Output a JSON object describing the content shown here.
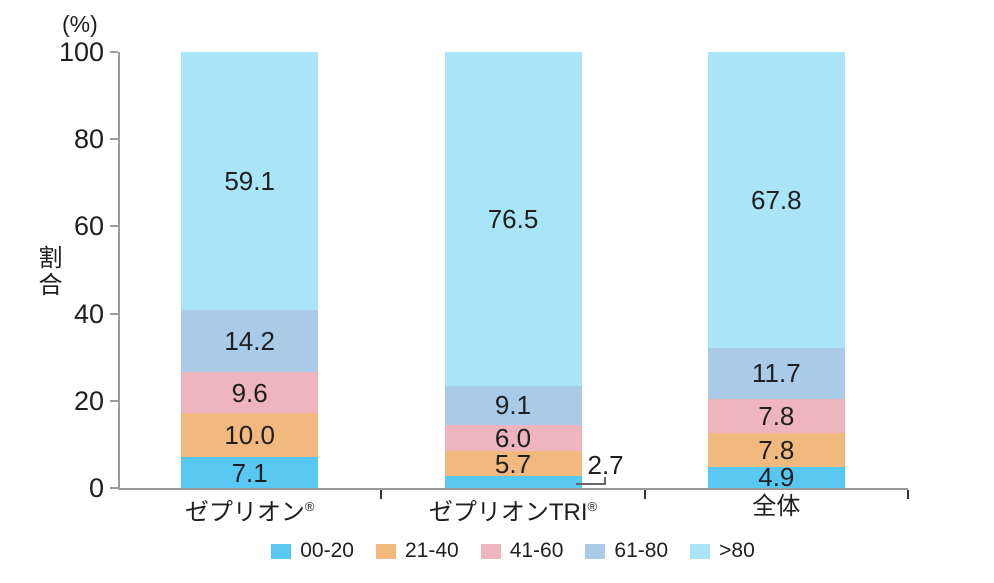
{
  "chart_data": {
    "type": "bar",
    "subtype": "stacked-percent",
    "title": "",
    "unit_label": "(%)",
    "ylabel": "割合",
    "xlabel": "",
    "ylim": [
      0,
      100
    ],
    "yticks": [
      0,
      20,
      40,
      60,
      80,
      100
    ],
    "grid": false,
    "legend_position": "bottom",
    "categories": [
      {
        "name": "ゼプリオン",
        "mark": "®"
      },
      {
        "name": "ゼプリオンTRI",
        "mark": "®"
      },
      {
        "name": "全体",
        "mark": ""
      }
    ],
    "series": [
      {
        "name": "00-20",
        "color": "#58C8F3",
        "values": [
          7.1,
          2.7,
          4.9
        ]
      },
      {
        "name": "21-40",
        "color": "#F1B97E",
        "values": [
          10.0,
          5.7,
          7.8
        ]
      },
      {
        "name": "41-60",
        "color": "#EEB5C1",
        "values": [
          9.6,
          6.0,
          7.8
        ]
      },
      {
        "name": "61-80",
        "color": "#A9CBE8",
        "values": [
          14.2,
          9.1,
          11.7
        ]
      },
      {
        "name": ">80",
        "color": "#A9E4F8",
        "values": [
          59.1,
          76.5,
          67.8
        ]
      }
    ],
    "outside_labels": [
      {
        "category_index": 1,
        "series_index": 0
      }
    ],
    "axis_color": "#9b9b9b",
    "tick_color": "#333333",
    "callout_color": "#666666",
    "text_color": "#1f1f1f"
  }
}
